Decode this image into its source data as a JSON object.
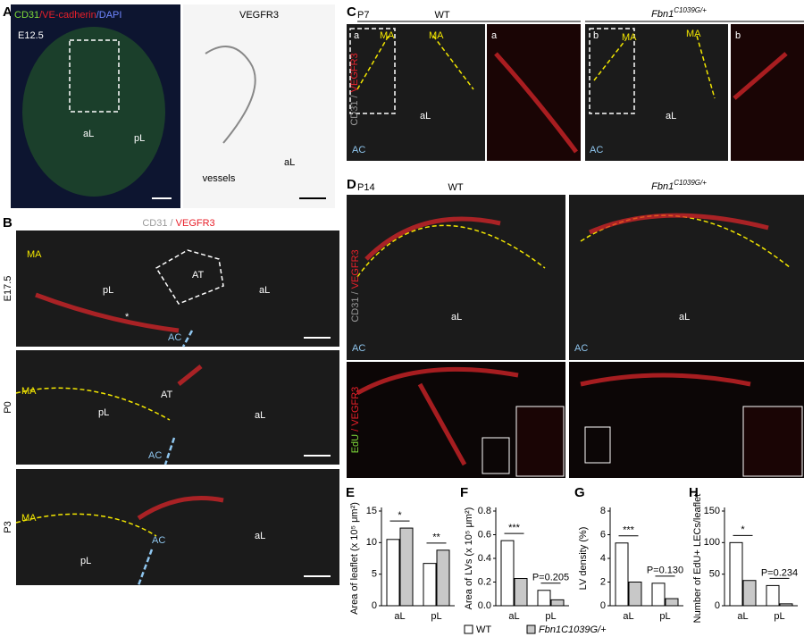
{
  "panel_a": {
    "letter": "A",
    "stain": [
      "CD31",
      "/VE-cadherin",
      "/DAPI"
    ],
    "stage": "E12.5",
    "labels": [
      "aL",
      "pL"
    ],
    "right_title": "VEGFR3",
    "right_labels": [
      "vessels",
      "aL"
    ]
  },
  "panel_b": {
    "letter": "B",
    "stain": [
      "CD31 /",
      "VEGFR3"
    ],
    "rows": [
      {
        "stage": "E17.5",
        "labels": [
          "MA",
          "pL",
          "AT",
          "aL",
          "AC",
          "*"
        ]
      },
      {
        "stage": "P0",
        "labels": [
          "MA",
          "pL",
          "AT",
          "aL",
          "AC"
        ]
      },
      {
        "stage": "P3",
        "labels": [
          "MA",
          "pL",
          "aL",
          "AC"
        ]
      }
    ]
  },
  "panel_c": {
    "letter": "C",
    "stage": "P7",
    "stain": [
      "CD31 /",
      "VEGFR3"
    ],
    "groups": [
      {
        "genotype": "WT",
        "labels": [
          "a",
          "MA",
          "MA",
          "aL",
          "AC"
        ],
        "inset": "a"
      },
      {
        "genotype": "Fbn1",
        "genotype_sup": "C1039G/+",
        "labels": [
          "b",
          "MA",
          "MA",
          "aL",
          "AC"
        ],
        "inset": "b"
      }
    ]
  },
  "panel_d": {
    "letter": "D",
    "stage": "P14",
    "row_stains": [
      [
        "CD31 /",
        "VEGFR3"
      ],
      [
        "EdU",
        "/ VEGFR3"
      ]
    ],
    "groups": [
      {
        "genotype": "WT",
        "labels": [
          "aL",
          "AC"
        ]
      },
      {
        "genotype": "Fbn1",
        "genotype_sup": "C1039G/+",
        "labels": [
          "aL",
          "AC"
        ]
      }
    ]
  },
  "chart_data": [
    {
      "type": "bar",
      "letter": "E",
      "ylabel": "Area of leaflet (x 10⁵ μm²)",
      "categories": [
        "aL",
        "pL"
      ],
      "series": [
        {
          "name": "WT",
          "color": "#ffffff",
          "values": [
            10.5,
            6.7
          ]
        },
        {
          "name": "Fbn1C1039G/+",
          "color": "#c8c8c8",
          "values": [
            12.3,
            8.8
          ]
        }
      ],
      "ylim": [
        0,
        15
      ],
      "yticks": [
        0,
        5,
        10,
        15
      ],
      "significance": [
        "*",
        "**"
      ]
    },
    {
      "type": "bar",
      "letter": "F",
      "ylabel": "Area of LVs (x 10⁵ μm²)",
      "categories": [
        "aL",
        "pL"
      ],
      "series": [
        {
          "color": "#ffffff",
          "values": [
            0.55,
            0.13
          ]
        },
        {
          "color": "#c8c8c8",
          "values": [
            0.23,
            0.05
          ]
        }
      ],
      "ylim": [
        0,
        0.8
      ],
      "yticks": [
        {
          "value": 0,
          "label": "0.0"
        },
        0.2,
        0.4,
        0.6,
        0.8
      ],
      "significance": [
        "***",
        "P=0.205"
      ]
    },
    {
      "type": "bar",
      "letter": "G",
      "ylabel": "LV density (%)",
      "categories": [
        "aL",
        "pL"
      ],
      "series": [
        {
          "color": "#ffffff",
          "values": [
            5.3,
            1.9
          ]
        },
        {
          "color": "#c8c8c8",
          "values": [
            2.0,
            0.6
          ]
        }
      ],
      "ylim": [
        0,
        8
      ],
      "yticks": [
        0,
        2,
        4,
        6,
        8
      ],
      "significance": [
        "***",
        "P=0.130"
      ]
    },
    {
      "type": "bar",
      "letter": "H",
      "ylabel": "Number of EdU+ LECs/leaflet",
      "categories": [
        "aL",
        "pL"
      ],
      "series": [
        {
          "color": "#ffffff",
          "values": [
            100,
            32
          ]
        },
        {
          "color": "#c8c8c8",
          "values": [
            40,
            3
          ]
        }
      ],
      "ylim": [
        0,
        150
      ],
      "yticks": [
        0,
        50,
        100,
        150
      ],
      "significance": [
        "*",
        "P=0.234"
      ]
    }
  ]
}
